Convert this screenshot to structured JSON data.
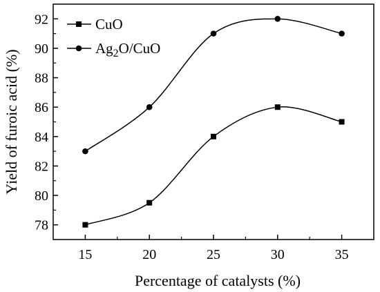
{
  "chart_data": {
    "type": "line",
    "title": "",
    "xlabel": "Percentage of catalysts (%)",
    "ylabel": "Yield of furoic acid (%)",
    "x": [
      15,
      20,
      25,
      30,
      35
    ],
    "xlim": [
      12.5,
      37.5
    ],
    "ylim": [
      77,
      93
    ],
    "xticks": [
      "15",
      "20",
      "25",
      "30",
      "35"
    ],
    "yticks": [
      "78",
      "80",
      "82",
      "84",
      "86",
      "88",
      "90",
      "92"
    ],
    "grid": false,
    "legend_position": "top-left",
    "series": [
      {
        "name": "CuO",
        "name_base": "CuO",
        "marker": "square",
        "values": [
          78,
          79.5,
          84,
          86,
          85
        ]
      },
      {
        "name": "Ag2O/CuO",
        "name_base": "Ag",
        "name_subscript": "2",
        "name_rest": "O/CuO",
        "marker": "circle",
        "values": [
          83,
          86,
          91,
          92,
          91
        ]
      }
    ]
  }
}
